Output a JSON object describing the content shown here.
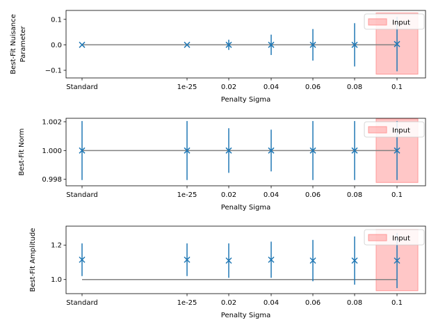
{
  "chart_data": [
    {
      "type": "scatter",
      "title": "",
      "xlabel": "Penalty Sigma",
      "ylabel_lines": [
        "Best-Fit Nuisance",
        "Parameter"
      ],
      "categories": [
        "Standard",
        "1e-25",
        "0.02",
        "0.04",
        "0.06",
        "0.08",
        "0.1"
      ],
      "x_tick_labels": [
        "Standard",
        "1e-25",
        "0.02",
        "0.04",
        "0.06",
        "0.08",
        "0.1"
      ],
      "ylim": [
        -0.13,
        0.135
      ],
      "y_ticks": [
        -0.1,
        0.0,
        0.1
      ],
      "y_tick_labels": [
        "−0.1",
        "0.0",
        "0.1"
      ],
      "series": [
        {
          "kind": "points_with_errorbars",
          "marker": "x",
          "color": "#1f77b4",
          "values": [
            0.0,
            0.0,
            0.0,
            0.0,
            0.0,
            0.0,
            0.003
          ],
          "errors": [
            0.0,
            0.0,
            0.02,
            0.04,
            0.062,
            0.085,
            0.107
          ]
        },
        {
          "kind": "reference_line",
          "color": "#808080",
          "value": 0.0
        }
      ],
      "input_band": {
        "label": "Input",
        "color": "#ff9999",
        "y_range": [
          -0.115,
          0.125
        ]
      },
      "legend": {
        "placement": "top-right",
        "entries": [
          "Input"
        ]
      }
    },
    {
      "type": "scatter",
      "title": "",
      "xlabel": "Penalty Sigma",
      "ylabel_lines": [
        "Best-Fit Norm"
      ],
      "categories": [
        "Standard",
        "1e-25",
        "0.02",
        "0.04",
        "0.06",
        "0.08",
        "0.1"
      ],
      "x_tick_labels": [
        "Standard",
        "1e-25",
        "0.02",
        "0.04",
        "0.06",
        "0.08",
        "0.1"
      ],
      "ylim": [
        0.99755,
        1.00224
      ],
      "y_ticks": [
        0.998,
        1.0,
        1.002
      ],
      "y_tick_labels": [
        "0.998",
        "1.000",
        "1.002"
      ],
      "series": [
        {
          "kind": "points_with_errorbars",
          "marker": "x",
          "color": "#1f77b4",
          "values": [
            1.0,
            1.0,
            1.0,
            1.0,
            1.0,
            1.0,
            1.0
          ],
          "errors": [
            0.00205,
            0.00205,
            0.00155,
            0.00145,
            0.00205,
            0.00205,
            0.00205
          ]
        },
        {
          "kind": "reference_line",
          "color": "#808080",
          "value": 1.0
        }
      ],
      "input_band": {
        "label": "Input",
        "color": "#ff9999",
        "y_range": [
          0.99778,
          1.0022
        ]
      },
      "legend": {
        "placement": "top-right",
        "entries": [
          "Input"
        ]
      }
    },
    {
      "type": "scatter",
      "title": "",
      "xlabel": "Penalty Sigma",
      "ylabel_lines": [
        "Best-Fit Amplitude"
      ],
      "categories": [
        "Standard",
        "1e-25",
        "0.02",
        "0.04",
        "0.06",
        "0.08",
        "0.1"
      ],
      "x_tick_labels": [
        "Standard",
        "1e-25",
        "0.02",
        "0.04",
        "0.06",
        "0.08",
        "0.1"
      ],
      "ylim": [
        0.918,
        1.31
      ],
      "y_ticks": [
        1.0,
        1.2
      ],
      "y_tick_labels": [
        "1.0",
        "1.2"
      ],
      "series": [
        {
          "kind": "points_with_errorbars",
          "marker": "x",
          "color": "#1f77b4",
          "values": [
            1.115,
            1.115,
            1.11,
            1.115,
            1.11,
            1.11,
            1.11
          ],
          "errors": [
            0.095,
            0.095,
            0.1,
            0.105,
            0.12,
            0.14,
            0.16
          ]
        },
        {
          "kind": "reference_line",
          "color": "#808080",
          "value": 1.0
        }
      ],
      "input_band": {
        "label": "Input",
        "color": "#ff9999",
        "y_range": [
          0.935,
          1.29
        ]
      },
      "legend": {
        "placement": "top-right",
        "entries": [
          "Input"
        ]
      }
    }
  ]
}
